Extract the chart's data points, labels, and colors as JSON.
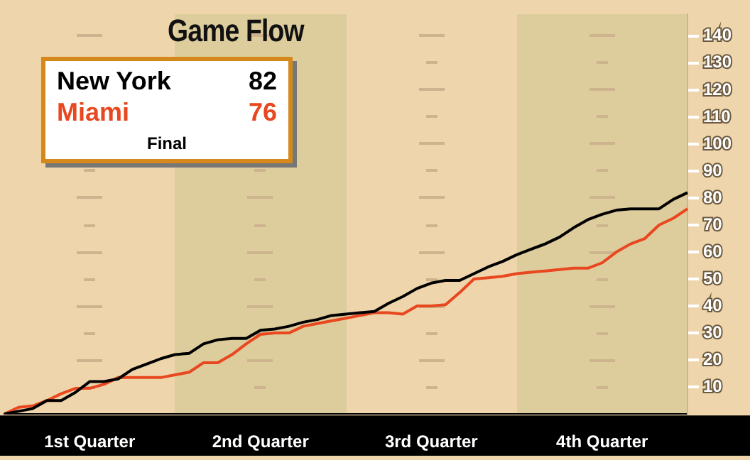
{
  "chart_data": {
    "type": "line",
    "title": "Game Flow",
    "annotations": [
      "82",
      "76",
      "Final"
    ],
    "categories": [
      null,
      null,
      null,
      null,
      null,
      null,
      "1st Quarter",
      null,
      null,
      null,
      null,
      null,
      null,
      null,
      null,
      null,
      null,
      null,
      "2nd Quarter",
      null,
      null,
      null,
      null,
      null,
      null,
      null,
      null,
      null,
      null,
      null,
      "3rd Quarter",
      null,
      null,
      null,
      null,
      null,
      null,
      null,
      null,
      null,
      null,
      null,
      "4th Quarter",
      null,
      null,
      null,
      null,
      null,
      null
    ],
    "ylim": [
      0,
      148
    ],
    "yticks": [
      10,
      20,
      30,
      40,
      50,
      60,
      70,
      80,
      90,
      100,
      110,
      120,
      130,
      140
    ],
    "legend": "top left",
    "marker": "none",
    "series": [
      {
        "name": "New York",
        "color": "#000000",
        "values": [
          0,
          1,
          2,
          5,
          5,
          8,
          12,
          12,
          13,
          16.5,
          18.5,
          20.5,
          22,
          22.5,
          26,
          27.5,
          28,
          28,
          31,
          31.5,
          32.5,
          34,
          35,
          36.5,
          37,
          37.5,
          38,
          41,
          43.5,
          46.5,
          48.5,
          49.5,
          49.5,
          52,
          54.5,
          56.5,
          59,
          61,
          63,
          65.5,
          69,
          72,
          74,
          75.5,
          76,
          76,
          76,
          79.5,
          82
        ]
      },
      {
        "name": "Miami",
        "color": "#e8471f",
        "values": [
          0,
          2.5,
          3,
          5,
          7.5,
          9.5,
          9.5,
          11,
          13.5,
          13.5,
          13.5,
          13.5,
          14.5,
          15.5,
          19,
          19,
          22,
          26,
          29.5,
          30,
          30,
          32.5,
          33.5,
          34.5,
          35.5,
          36.5,
          37.5,
          37.5,
          37,
          40,
          40,
          40.5,
          45,
          50,
          50.5,
          51,
          52,
          52.5,
          53,
          53.5,
          54,
          54,
          56,
          60,
          63,
          65,
          70,
          72.5,
          76
        ]
      }
    ]
  }
}
